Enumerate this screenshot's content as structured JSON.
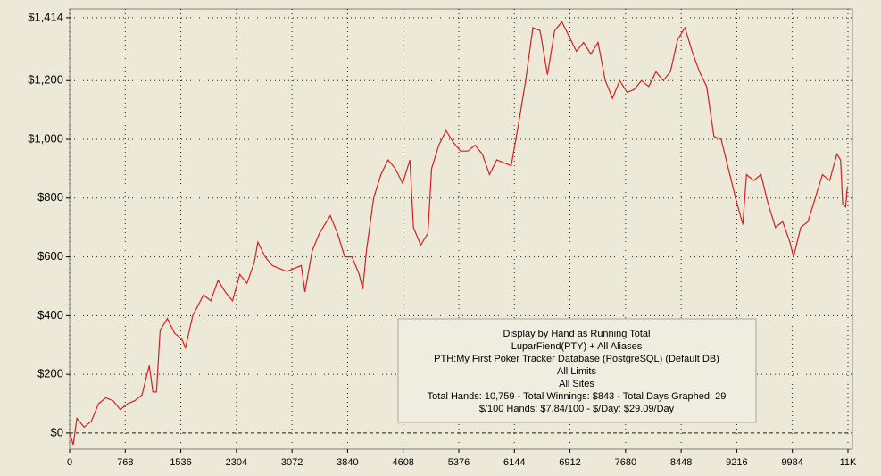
{
  "chart_data": {
    "type": "line",
    "x": [
      0,
      50,
      100,
      200,
      300,
      400,
      500,
      600,
      700,
      800,
      900,
      1000,
      1100,
      1150,
      1200,
      1250,
      1350,
      1450,
      1550,
      1600,
      1700,
      1850,
      1950,
      2050,
      2150,
      2250,
      2350,
      2450,
      2550,
      2600,
      2700,
      2800,
      2900,
      3000,
      3100,
      3200,
      3250,
      3350,
      3450,
      3550,
      3600,
      3700,
      3800,
      3900,
      4000,
      4050,
      4100,
      4200,
      4300,
      4400,
      4500,
      4600,
      4700,
      4750,
      4850,
      4950,
      5000,
      5100,
      5200,
      5300,
      5400,
      5500,
      5600,
      5700,
      5800,
      5900,
      6000,
      6100,
      6200,
      6300,
      6400,
      6500,
      6600,
      6700,
      6800,
      6900,
      7000,
      7100,
      7200,
      7300,
      7400,
      7500,
      7600,
      7700,
      7800,
      7900,
      8000,
      8100,
      8200,
      8300,
      8400,
      8500,
      8600,
      8700,
      8800,
      8900,
      9000,
      9100,
      9200,
      9300,
      9350,
      9450,
      9550,
      9650,
      9750,
      9850,
      9950,
      10000,
      10100,
      10200,
      10300,
      10400,
      10500,
      10600,
      10650,
      10680,
      10720,
      10740,
      10750
    ],
    "series": [
      {
        "color": "#d42020",
        "values": [
          0,
          -40,
          50,
          20,
          40,
          100,
          120,
          110,
          80,
          100,
          110,
          130,
          230,
          140,
          140,
          350,
          390,
          340,
          320,
          290,
          400,
          470,
          450,
          520,
          480,
          450,
          540,
          510,
          580,
          650,
          600,
          570,
          560,
          550,
          560,
          570,
          480,
          620,
          680,
          720,
          740,
          680,
          600,
          600,
          540,
          490,
          620,
          800,
          880,
          930,
          900,
          850,
          930,
          700,
          640,
          680,
          900,
          980,
          1030,
          990,
          960,
          960,
          980,
          950,
          880,
          930,
          920,
          910,
          1050,
          1200,
          1380,
          1370,
          1220,
          1370,
          1400,
          1350,
          1300,
          1330,
          1290,
          1330,
          1200,
          1140,
          1200,
          1160,
          1170,
          1200,
          1180,
          1230,
          1200,
          1230,
          1340,
          1380,
          1300,
          1230,
          1180,
          1010,
          1000,
          900,
          800,
          710,
          880,
          860,
          880,
          780,
          700,
          720,
          650,
          600,
          700,
          720,
          800,
          880,
          860,
          950,
          930,
          780,
          770,
          830,
          840
        ]
      }
    ],
    "xlim": [
      0,
      10814
    ],
    "ylim": [
      -55,
      1444
    ],
    "xticks": [
      0,
      768,
      1536,
      2304,
      3072,
      3840,
      4608,
      5376,
      6144,
      6912,
      7680,
      8448,
      9216,
      9984,
      {
        "value": 10752,
        "label": "11K"
      }
    ],
    "yticks": [
      {
        "value": 0,
        "label": "$0"
      },
      {
        "value": 200,
        "label": "$200"
      },
      {
        "value": 400,
        "label": "$400"
      },
      {
        "value": 600,
        "label": "$600"
      },
      {
        "value": 800,
        "label": "$800"
      },
      {
        "value": 1000,
        "label": "$1,000"
      },
      {
        "value": 1200,
        "label": "$1,200"
      },
      {
        "value": 1414,
        "label": "$1,414"
      }
    ],
    "grid": true,
    "annotations": [
      "Display by Hand as Running Total",
      "LuparFiend(PTY) + All Aliases",
      "PTH:My First Poker Tracker Database (PostgreSQL) (Default DB)",
      "All Limits",
      "All Sites",
      "Total Hands: 10,759 - Total Winnings: $843 - Total Days Graphed: 29",
      "$/100 Hands: $7.84/100 - $/Day: $29.09/Day"
    ]
  }
}
